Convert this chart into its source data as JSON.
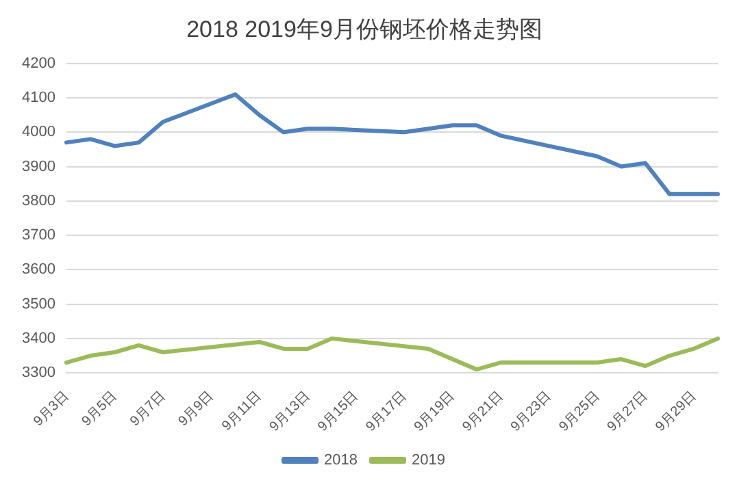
{
  "chart_data": {
    "type": "line",
    "title": "2018 2019年9月份钢坯价格走势图",
    "categories": [
      "9月3日",
      null,
      "9月5日",
      null,
      "9月7日",
      null,
      "9月9日",
      null,
      "9月11日",
      null,
      "9月13日",
      null,
      "9月15日",
      null,
      "9月17日",
      null,
      "9月19日",
      null,
      "9月21日",
      null,
      "9月23日",
      null,
      "9月25日",
      null,
      "9月27日",
      null,
      "9月29日",
      null
    ],
    "series": [
      {
        "name": "2018",
        "color": "#4f81bd",
        "values": [
          3970,
          3980,
          3960,
          3970,
          4030,
          null,
          null,
          4110,
          4050,
          4000,
          4010,
          4010,
          null,
          null,
          4000,
          null,
          4020,
          4020,
          3990,
          null,
          null,
          null,
          3930,
          3900,
          3910,
          3820,
          3820,
          3820
        ]
      },
      {
        "name": "2019",
        "color": "#9bbb59",
        "values": [
          3330,
          3350,
          3360,
          3380,
          3360,
          null,
          null,
          null,
          3390,
          3370,
          3370,
          3400,
          null,
          null,
          null,
          3370,
          null,
          3310,
          3330,
          null,
          null,
          null,
          3330,
          3340,
          3320,
          3350,
          3370,
          3400
        ]
      }
    ],
    "ylim": [
      3300,
      4200
    ],
    "yticks": [
      3300,
      3400,
      3500,
      3600,
      3700,
      3800,
      3900,
      4000,
      4100,
      4200
    ],
    "grid": "y",
    "legend": "bottom",
    "marker": "none",
    "line_style": "solid"
  }
}
